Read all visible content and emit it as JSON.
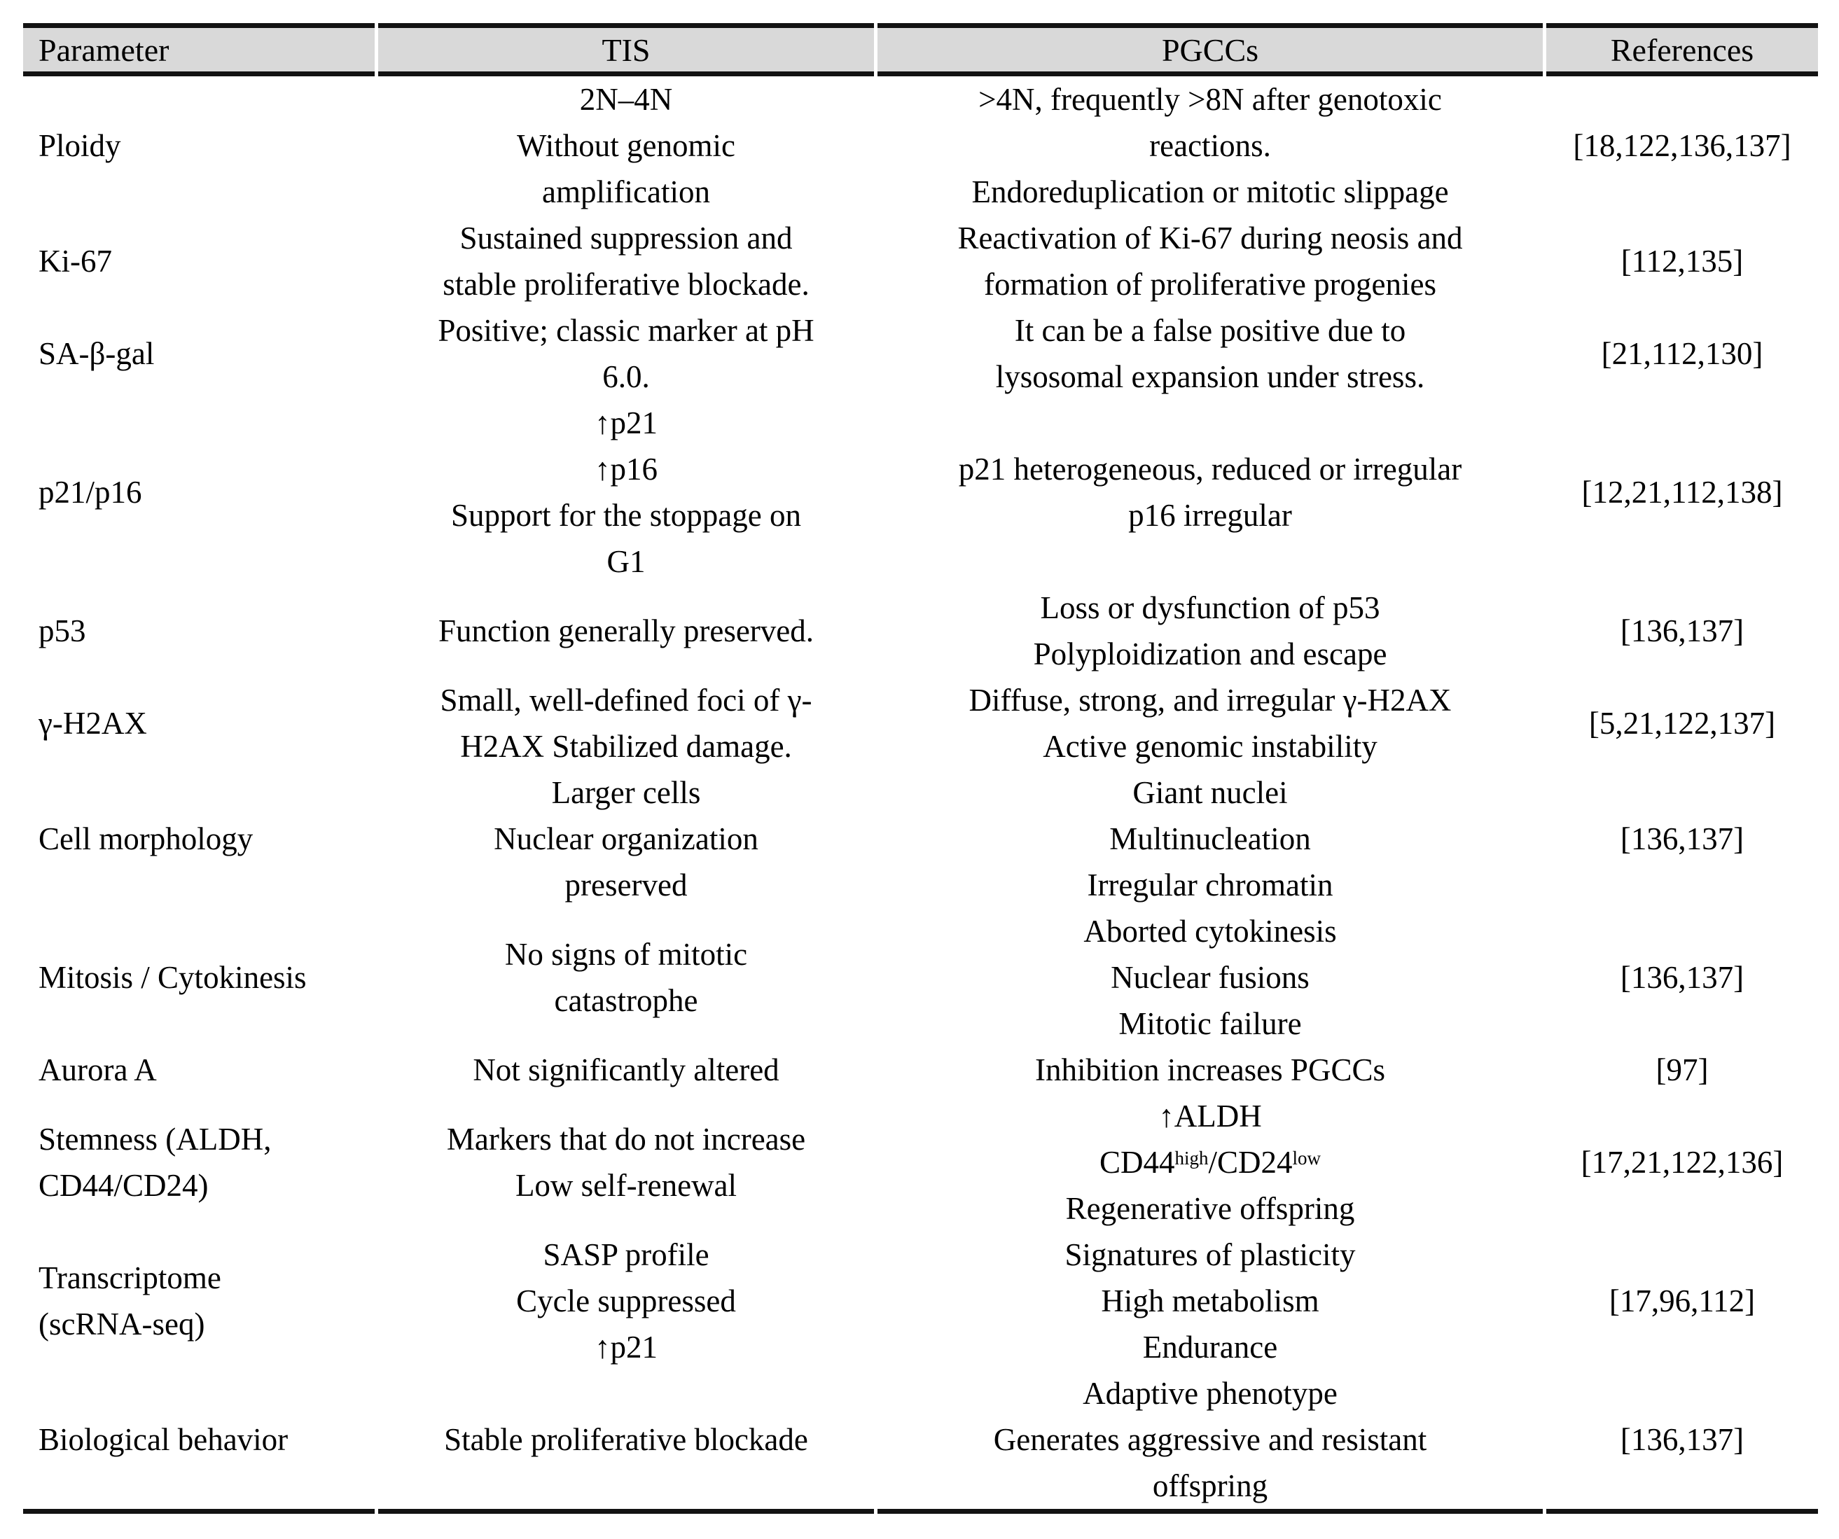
{
  "colors": {
    "background": "#ffffff",
    "header_bg": "#d9d9d9",
    "rule": "#121212",
    "text": "#000000"
  },
  "table": {
    "headers": [
      "Parameter",
      "TIS",
      "PGCCs",
      "References"
    ],
    "rows": [
      {
        "param": [
          "Ploidy"
        ],
        "tis": [
          "2N–4N",
          "Without genomic",
          "amplification"
        ],
        "pgcc": [
          ">4N, frequently >8N after genotoxic",
          "reactions.",
          "Endoreduplication or mitotic slippage"
        ],
        "refs": "[18,122,136,137]"
      },
      {
        "param": [
          "Ki-67"
        ],
        "tis": [
          "Sustained suppression and",
          "stable proliferative blockade."
        ],
        "pgcc": [
          "Reactivation of Ki-67 during neosis and",
          "formation of proliferative progenies"
        ],
        "refs": "[112,135]"
      },
      {
        "param": [
          "SA-β-gal"
        ],
        "tis": [
          "Positive; classic marker at pH",
          "6.0."
        ],
        "pgcc": [
          "It can be a false positive due to",
          "lysosomal expansion under stress."
        ],
        "refs": "[21,112,130]"
      },
      {
        "param": [
          "p21/p16"
        ],
        "tis": [
          "↑p21",
          "↑p16",
          "Support for the stoppage on",
          "G1"
        ],
        "pgcc": [
          "p21 heterogeneous, reduced or irregular",
          "p16 irregular"
        ],
        "refs": "[12,21,112,138]"
      },
      {
        "param": [
          "p53"
        ],
        "tis": [
          "Function generally preserved."
        ],
        "pgcc": [
          "Loss or dysfunction of p53",
          "Polyploidization and escape"
        ],
        "refs": "[136,137]"
      },
      {
        "param": [
          "γ-H2AX"
        ],
        "tis": [
          "Small, well-defined foci of γ-",
          "H2AX Stabilized damage."
        ],
        "pgcc": [
          "Diffuse, strong, and irregular γ-H2AX",
          "Active genomic instability"
        ],
        "refs": "[5,21,122,137]"
      },
      {
        "param": [
          "Cell morphology"
        ],
        "tis": [
          "Larger cells",
          "Nuclear organization",
          "preserved"
        ],
        "pgcc": [
          "Giant nuclei",
          "Multinucleation",
          "Irregular chromatin"
        ],
        "refs": "[136,137]"
      },
      {
        "param": [
          "Mitosis / Cytokinesis"
        ],
        "tis": [
          "No signs of mitotic",
          "catastrophe"
        ],
        "pgcc": [
          "Aborted cytokinesis",
          "Nuclear fusions",
          "Mitotic failure"
        ],
        "refs": "[136,137]"
      },
      {
        "param": [
          "Aurora A"
        ],
        "tis": [
          "Not significantly altered"
        ],
        "pgcc": [
          "Inhibition increases PGCCs"
        ],
        "refs": "[97]"
      },
      {
        "param": [
          "Stemness (ALDH,",
          "CD44/CD24)"
        ],
        "tis": [
          "Markers that do not increase",
          "Low self-renewal"
        ],
        "pgcc": [
          "↑ALDH",
          [
            {
              "t": "CD44"
            },
            {
              "t": "high",
              "sup": true
            },
            {
              "t": "/CD24"
            },
            {
              "t": "low",
              "sup": true
            }
          ],
          "Regenerative offspring"
        ],
        "refs": "[17,21,122,136]"
      },
      {
        "param": [
          "Transcriptome",
          "(scRNA-seq)"
        ],
        "tis": [
          "SASP profile",
          "Cycle suppressed",
          "↑p21"
        ],
        "pgcc": [
          "Signatures of plasticity",
          "High metabolism",
          "Endurance"
        ],
        "refs": "[17,96,112]"
      },
      {
        "param": [
          "Biological behavior"
        ],
        "tis": [
          "Stable proliferative blockade"
        ],
        "pgcc": [
          "Adaptive phenotype",
          "Generates aggressive and resistant",
          "offspring"
        ],
        "refs": "[136,137]"
      }
    ]
  }
}
